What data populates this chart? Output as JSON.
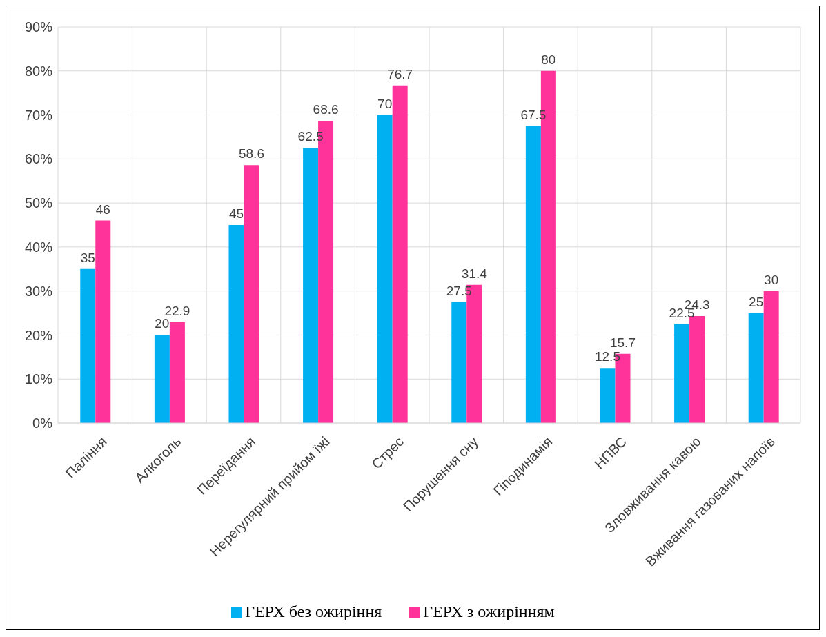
{
  "chart_data": {
    "type": "bar",
    "categories": [
      "Паління",
      "Алкоголь",
      "Переїдання",
      "Нерегулярний прийом їжі",
      "Стрес",
      "Порушення сну",
      "Гіподинамія",
      "НПВС",
      "Зловживання кавою",
      "Вживання газованих напоїв"
    ],
    "series": [
      {
        "name": "ГЕРХ без ожиріння",
        "color": "#00b0f0",
        "values": [
          35,
          20,
          45,
          62.5,
          70,
          27.5,
          67.5,
          12.5,
          22.5,
          25
        ]
      },
      {
        "name": "ГЕРХ з ожирінням",
        "color": "#ff3399",
        "values": [
          46,
          22.9,
          58.6,
          68.6,
          76.7,
          31.4,
          80,
          15.7,
          24.3,
          30
        ]
      }
    ],
    "ylim": [
      0,
      90
    ],
    "yticks": [
      {
        "value": 0,
        "label": "0%"
      },
      {
        "value": 10,
        "label": "10%"
      },
      {
        "value": 20,
        "label": "20%"
      },
      {
        "value": 30,
        "label": "30%"
      },
      {
        "value": 40,
        "label": "40%"
      },
      {
        "value": 50,
        "label": "50%"
      },
      {
        "value": 60,
        "label": "60%"
      },
      {
        "value": 70,
        "label": "70%"
      },
      {
        "value": 80,
        "label": "80%"
      },
      {
        "value": 90,
        "label": "90%"
      }
    ],
    "grid": true,
    "legend": "bottom",
    "data_labels": true
  }
}
